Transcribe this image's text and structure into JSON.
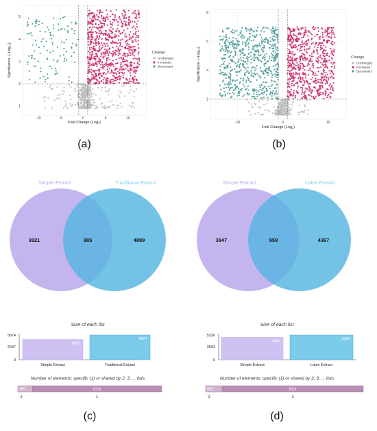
{
  "panel_labels": {
    "a": "(a)",
    "b": "(b)",
    "c": "(c)",
    "d": "(d)"
  },
  "colors": {
    "unchanged": "#bdbdbd",
    "increased": "#cc2f6e",
    "decreased": "#4f9b9b",
    "venn_left": "#c2b1ee",
    "venn_right": "#55b5e0",
    "venn_overlap": "#6a9ad6",
    "venn_left_label": "#b8a7ea",
    "venn_right_label": "#82cbef",
    "bar_left": "#cfc2f3",
    "bar_right": "#7ccbea",
    "ne_bar": "#b98eb4",
    "ne_bar_light": "#d2b6cf"
  },
  "chart_data": [
    {
      "id": "a",
      "type": "scatter",
      "title": "",
      "xlabel": "Fold Change (Log₂)",
      "ylabel": "Significance (−Log₁₀)",
      "xlim": [
        -13.5,
        14
      ],
      "ylim": [
        0.6,
        5.5
      ],
      "xticks": [
        -10,
        -5,
        0,
        5,
        10
      ],
      "yticks": [
        1,
        2,
        3,
        4,
        5
      ],
      "vlines": [
        -1,
        1
      ],
      "hline": 2,
      "legend": {
        "title": "Change",
        "items": [
          "Unchanged",
          "Increased",
          "Decreased"
        ],
        "position": "right"
      },
      "series": [
        {
          "name": "Unchanged",
          "count": 420,
          "x_range": [
            -9,
            12
          ],
          "y_range": [
            0.9,
            2.0
          ],
          "peak_x": 0.5
        },
        {
          "name": "Increased",
          "count": 820,
          "x_range": [
            1.0,
            12.5
          ],
          "y_range": [
            2.0,
            5.3
          ]
        },
        {
          "name": "Decreased",
          "count": 120,
          "x_range": [
            -12.5,
            -1.0
          ],
          "y_range": [
            2.0,
            5.0
          ]
        }
      ]
    },
    {
      "id": "b",
      "type": "scatter",
      "title": "",
      "xlabel": "Fold Change (Log₂)",
      "ylabel": "Significance (−Log₁₀)",
      "xlim": [
        -16,
        14
      ],
      "ylim": [
        0.6,
        8.2
      ],
      "xticks": [
        -10,
        0,
        10
      ],
      "yticks": [
        2,
        4,
        6,
        8
      ],
      "vlines": [
        -1,
        1
      ],
      "hline": 2,
      "legend": {
        "title": "Change",
        "items": [
          "Unchanged",
          "Increased",
          "Decreased"
        ],
        "position": "right"
      },
      "series": [
        {
          "name": "Unchanged",
          "count": 260,
          "x_range": [
            -8,
            6
          ],
          "y_range": [
            0.9,
            2.0
          ],
          "peak_x": 0
        },
        {
          "name": "Increased",
          "count": 720,
          "x_range": [
            1.0,
            11.5
          ],
          "y_range": [
            2.0,
            7.0
          ]
        },
        {
          "name": "Decreased",
          "count": 650,
          "x_range": [
            -14,
            -1.0
          ],
          "y_range": [
            2.0,
            7.0
          ]
        }
      ]
    },
    {
      "id": "c",
      "type": "venn",
      "sets": [
        "Simple Extract",
        "Traditional Extract"
      ],
      "only_left": "3821",
      "overlap": "985",
      "only_right": "4889",
      "size_title": "Size of each list",
      "sizes": [
        4806,
        5874
      ],
      "size_labels": [
        "4806",
        "5874"
      ],
      "size_ticks": [
        "5874",
        "2937",
        "0"
      ],
      "shared_title": "Number of elements: specific (1) or shared by 2, 3, ... lists",
      "shared": [
        {
          "k": "2",
          "value": 985,
          "label": "985"
        },
        {
          "k": "1",
          "value": 8710,
          "label": "8710"
        }
      ]
    },
    {
      "id": "d",
      "type": "venn",
      "sets": [
        "Simple Extract",
        "Latex Extract"
      ],
      "only_left": "3847",
      "overlap": "959",
      "only_right": "4367",
      "size_title": "Size of each list",
      "sizes": [
        4806,
        5326
      ],
      "size_labels": [
        "4806",
        "5326"
      ],
      "size_ticks": [
        "5326",
        "2663",
        "0"
      ],
      "shared_title": "Number of elements: specific (1) or shared by 2, 3, ... lists",
      "shared": [
        {
          "k": "2",
          "value": 959,
          "label": "959"
        },
        {
          "k": "1",
          "value": 8214,
          "label": "8214"
        }
      ]
    }
  ]
}
